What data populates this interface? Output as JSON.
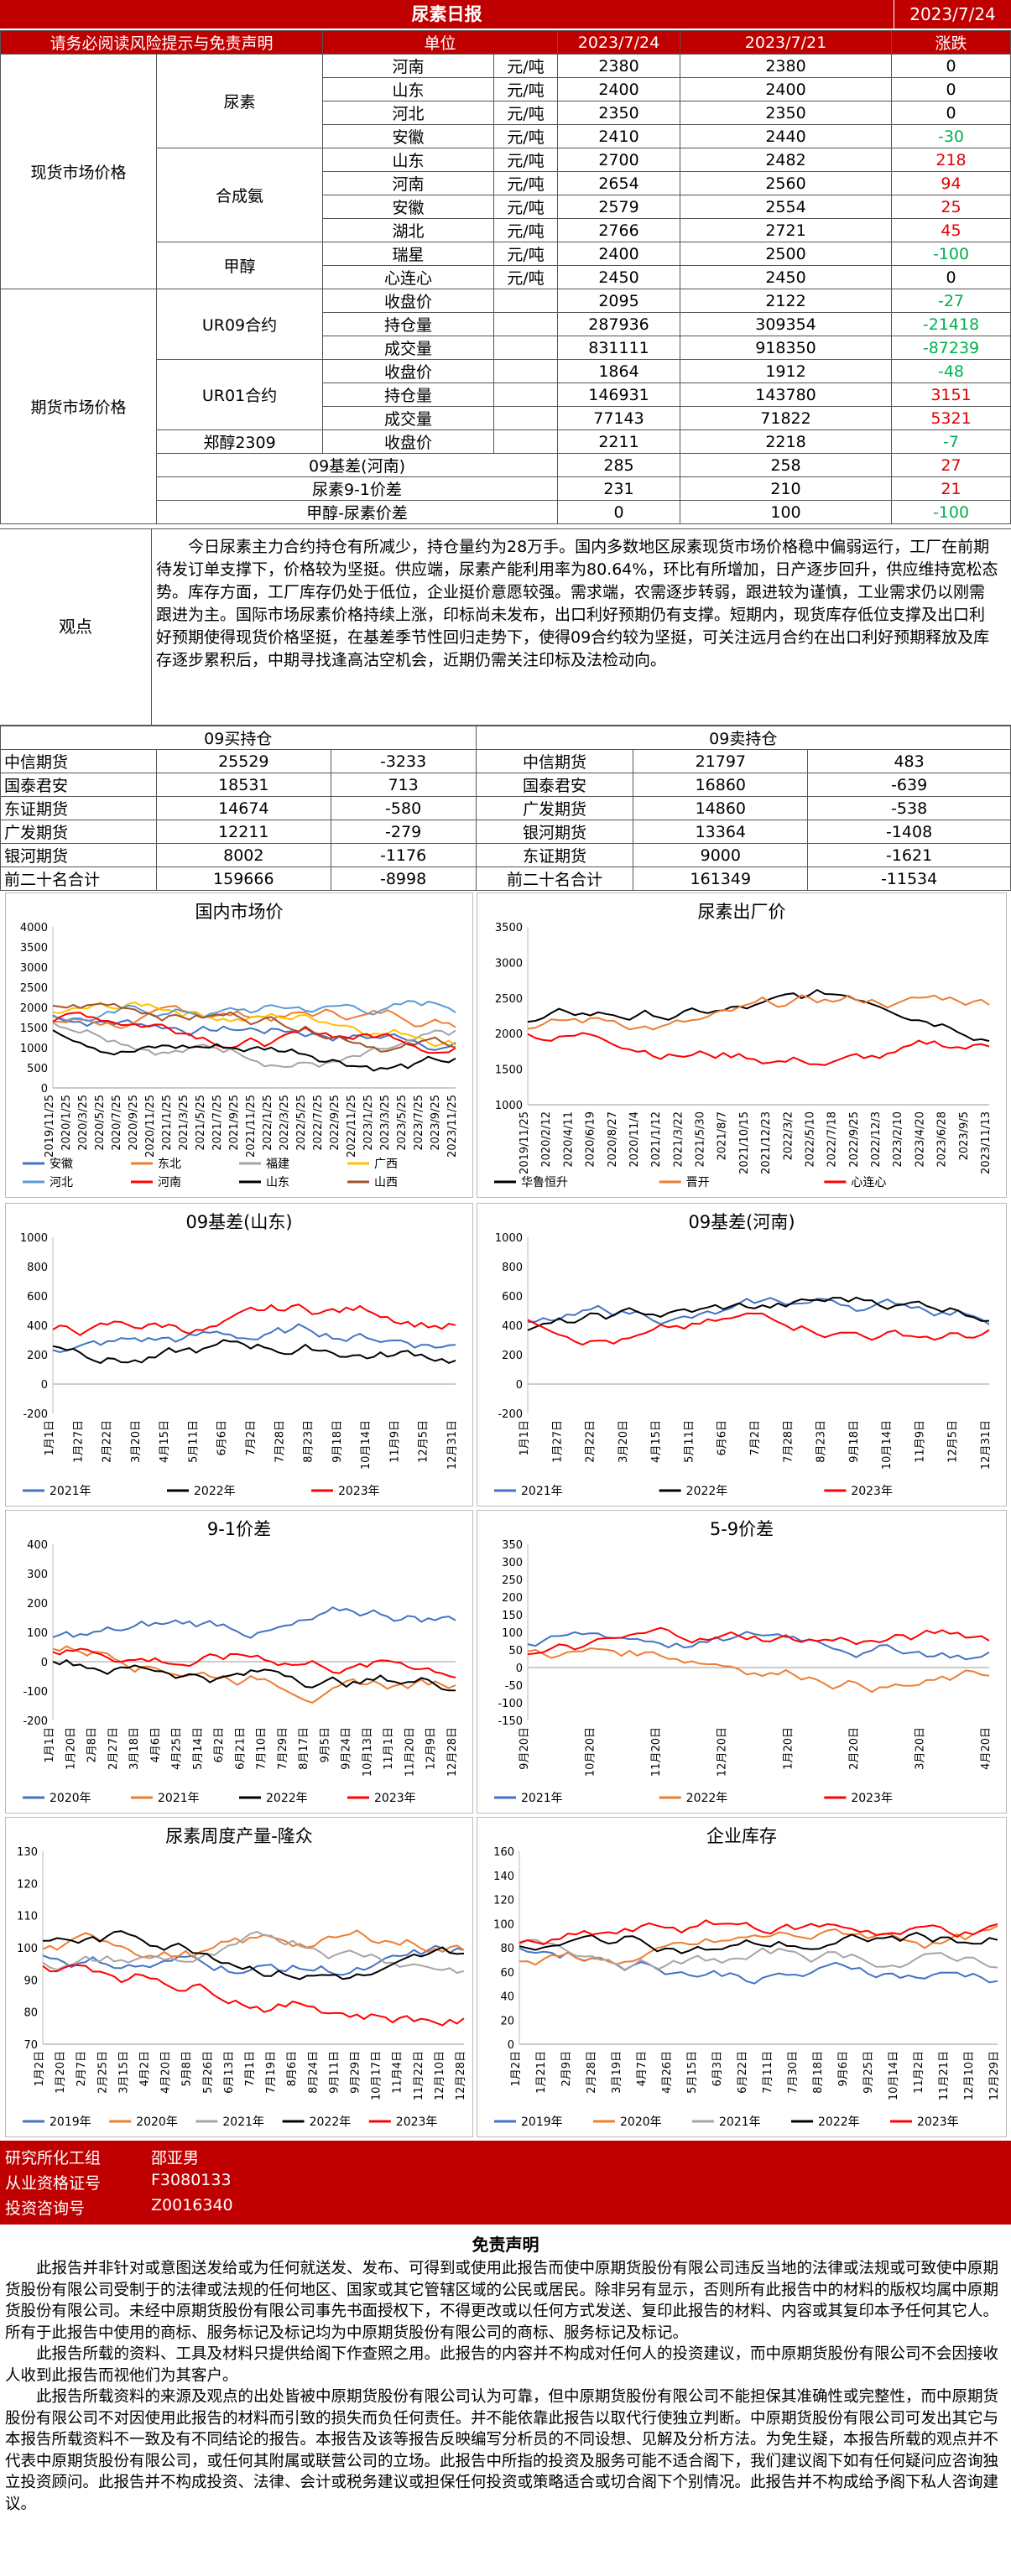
{
  "header": {
    "title": "尿素日报",
    "date": "2023/7/24"
  },
  "table_header": {
    "notice": "请务必阅读风险提示与免责声明",
    "unit": "单位",
    "d1": "2023/7/24",
    "d2": "2023/7/21",
    "change": "涨跌"
  },
  "groups": {
    "spot": "现货市场价格",
    "futures": "期货市场价格"
  },
  "subgroups": {
    "urea": "尿素",
    "ammonia": "合成氨",
    "methanol": "甲醇",
    "ur09": "UR09合约",
    "ur01": "UR01合约",
    "zc": "郑醇2309"
  },
  "rows": [
    {
      "name": "河南",
      "unit": "元/吨",
      "a": "2380",
      "b": "2380",
      "c": "0",
      "cls": ""
    },
    {
      "name": "山东",
      "unit": "元/吨",
      "a": "2400",
      "b": "2400",
      "c": "0",
      "cls": ""
    },
    {
      "name": "河北",
      "unit": "元/吨",
      "a": "2350",
      "b": "2350",
      "c": "0",
      "cls": ""
    },
    {
      "name": "安徽",
      "unit": "元/吨",
      "a": "2410",
      "b": "2440",
      "c": "-30",
      "cls": "neg"
    },
    {
      "name": "山东",
      "unit": "元/吨",
      "a": "2700",
      "b": "2482",
      "c": "218",
      "cls": "pos"
    },
    {
      "name": "河南",
      "unit": "元/吨",
      "a": "2654",
      "b": "2560",
      "c": "94",
      "cls": "pos"
    },
    {
      "name": "安徽",
      "unit": "元/吨",
      "a": "2579",
      "b": "2554",
      "c": "25",
      "cls": "pos"
    },
    {
      "name": "湖北",
      "unit": "元/吨",
      "a": "2766",
      "b": "2721",
      "c": "45",
      "cls": "pos"
    },
    {
      "name": "瑞星",
      "unit": "元/吨",
      "a": "2400",
      "b": "2500",
      "c": "-100",
      "cls": "neg"
    },
    {
      "name": "心连心",
      "unit": "元/吨",
      "a": "2450",
      "b": "2450",
      "c": "0",
      "cls": ""
    },
    {
      "name": "收盘价",
      "unit": "",
      "a": "2095",
      "b": "2122",
      "c": "-27",
      "cls": "neg"
    },
    {
      "name": "持仓量",
      "unit": "",
      "a": "287936",
      "b": "309354",
      "c": "-21418",
      "cls": "neg"
    },
    {
      "name": "成交量",
      "unit": "",
      "a": "831111",
      "b": "918350",
      "c": "-87239",
      "cls": "neg"
    },
    {
      "name": "收盘价",
      "unit": "",
      "a": "1864",
      "b": "1912",
      "c": "-48",
      "cls": "neg"
    },
    {
      "name": "持仓量",
      "unit": "",
      "a": "146931",
      "b": "143780",
      "c": "3151",
      "cls": "pos"
    },
    {
      "name": "成交量",
      "unit": "",
      "a": "77143",
      "b": "71822",
      "c": "5321",
      "cls": "pos"
    },
    {
      "name": "收盘价",
      "unit": "",
      "a": "2211",
      "b": "2218",
      "c": "-7",
      "cls": "neg"
    },
    {
      "name": "09基差(河南)",
      "unit": "",
      "a": "285",
      "b": "258",
      "c": "27",
      "cls": "pos"
    },
    {
      "name": "尿素9-1价差",
      "unit": "",
      "a": "231",
      "b": "210",
      "c": "21",
      "cls": "pos"
    },
    {
      "name": "甲醇-尿素价差",
      "unit": "",
      "a": "0",
      "b": "100",
      "c": "-100",
      "cls": "neg"
    }
  ],
  "observation": {
    "label": "观点",
    "text": "今日尿素主力合约持仓有所减少，持仓量约为28万手。国内多数地区尿素现货市场价格稳中偏弱运行，工厂在前期待发订单支撑下，价格较为坚挺。供应端，尿素产能利用率为80.64%，环比有所增加，日产逐步回升，供应维持宽松态势。库存方面，工厂库存仍处于低位，企业挺价意愿较强。需求端，农需逐步转弱，跟进较为谨慎，工业需求仍以刚需跟进为主。国际市场尿素价格持续上涨，印标尚未发布，出口利好预期仍有支撑。短期内，现货库存低位支撑及出口利好预期使得现货价格坚挺，在基差季节性回归走势下，使得09合约较为坚挺，可关注远月合约在出口利好预期释放及库存逐步累积后，中期寻找逢高沽空机会，近期仍需关注印标及法检动向。"
  },
  "holdings": {
    "buy_title": "09买持仓",
    "sell_title": "09卖持仓",
    "buy": [
      {
        "name": "中信期货",
        "v": "25529",
        "c": "-3233"
      },
      {
        "name": "国泰君安",
        "v": "18531",
        "c": "713"
      },
      {
        "name": "东证期货",
        "v": "14674",
        "c": "-580"
      },
      {
        "name": "广发期货",
        "v": "12211",
        "c": "-279"
      },
      {
        "name": "银河期货",
        "v": "8002",
        "c": "-1176"
      },
      {
        "name": "前二十名合计",
        "v": "159666",
        "c": "-8998"
      }
    ],
    "sell": [
      {
        "name": "中信期货",
        "v": "21797",
        "c": "483"
      },
      {
        "name": "国泰君安",
        "v": "16860",
        "c": "-639"
      },
      {
        "name": "广发期货",
        "v": "14860",
        "c": "-538"
      },
      {
        "name": "银河期货",
        "v": "13364",
        "c": "-1408"
      },
      {
        "name": "东证期货",
        "v": "9000",
        "c": "-1621"
      },
      {
        "name": "前二十名合计",
        "v": "161349",
        "c": "-11534"
      }
    ]
  },
  "charts": {
    "c1": {
      "title": "国内市场价"
    },
    "c2": {
      "title": "尿素出厂价"
    },
    "c3": {
      "title": "09基差(山东)"
    },
    "c4": {
      "title": "09基差(河南)"
    },
    "c5": {
      "title": "9-1价差"
    },
    "c6": {
      "title": "5-9价差"
    },
    "c7": {
      "title": "尿素周度产量-隆众"
    },
    "c8": {
      "title": "企业库存"
    }
  },
  "chart_data": [
    {
      "type": "line",
      "title": "国内市场价",
      "ylim": [
        0,
        4000
      ],
      "yticks": [
        "0",
        "500",
        "1000",
        "1500",
        "2000",
        "2500",
        "3000",
        "3500",
        "4000"
      ],
      "xticks": [
        "2019/11/25",
        "2020/1/25",
        "2020/3/25",
        "2020/5/25",
        "2020/7/25",
        "2020/9/25",
        "2020/11/25",
        "2021/1/25",
        "2021/3/25",
        "2021/5/25",
        "2021/7/25",
        "2021/9/25",
        "2021/11/25",
        "2022/1/25",
        "2022/3/25",
        "2022/5/25",
        "2022/7/25",
        "2022/9/25",
        "2022/11/25",
        "2023/1/25",
        "2023/3/25",
        "2023/5/25",
        "2023/7/25",
        "2023/9/25",
        "2023/11/25"
      ],
      "series": [
        {
          "name": "安徽",
          "color": "#4472c4"
        },
        {
          "name": "东北",
          "color": "#ed7d31"
        },
        {
          "name": "福建",
          "color": "#a5a5a5"
        },
        {
          "name": "广西",
          "color": "#ffc000"
        },
        {
          "name": "河北",
          "color": "#5b9bd5"
        },
        {
          "name": "河南",
          "color": "#ff0000"
        },
        {
          "name": "山东",
          "color": "#000000"
        },
        {
          "name": "山西",
          "color": "#a0522d"
        }
      ]
    },
    {
      "type": "line",
      "title": "尿素出厂价",
      "ylim": [
        1000,
        3500
      ],
      "yticks": [
        "1000",
        "1500",
        "2000",
        "2500",
        "3000",
        "3500"
      ],
      "xticks": [
        "2019/11/25",
        "2020/2/12",
        "2020/4/11",
        "2020/6/19",
        "2020/8/27",
        "2020/11/4",
        "2021/1/12",
        "2021/3/22",
        "2021/5/30",
        "2021/8/7",
        "2021/10/15",
        "2021/12/23",
        "2022/3/2",
        "2022/5/10",
        "2022/7/18",
        "2022/9/25",
        "2022/12/3",
        "2023/2/10",
        "2023/4/20",
        "2023/6/28",
        "2023/9/5",
        "2023/11/13"
      ],
      "series": [
        {
          "name": "华鲁恒升",
          "color": "#000000"
        },
        {
          "name": "晋开",
          "color": "#ed7d31"
        },
        {
          "name": "心连心",
          "color": "#ff0000"
        }
      ]
    },
    {
      "type": "line",
      "title": "09基差(山东)",
      "ylim": [
        -200,
        1000
      ],
      "yticks": [
        "-200",
        "0",
        "200",
        "400",
        "600",
        "800",
        "1000"
      ],
      "xticks": [
        "1月1日",
        "1月27日",
        "2月22日",
        "3月20日",
        "4月15日",
        "5月11日",
        "6月6日",
        "7月2日",
        "7月28日",
        "8月23日",
        "9月18日",
        "10月14日",
        "11月9日",
        "12月5日",
        "12月31日"
      ],
      "series": [
        {
          "name": "2021年",
          "color": "#4472c4"
        },
        {
          "name": "2022年",
          "color": "#000000"
        },
        {
          "name": "2023年",
          "color": "#ff0000"
        }
      ]
    },
    {
      "type": "line",
      "title": "09基差(河南)",
      "ylim": [
        -200,
        1000
      ],
      "yticks": [
        "-200",
        "0",
        "200",
        "400",
        "600",
        "800",
        "1000"
      ],
      "xticks": [
        "1月1日",
        "1月27日",
        "2月22日",
        "3月20日",
        "4月15日",
        "5月11日",
        "6月6日",
        "7月2日",
        "7月28日",
        "8月23日",
        "9月18日",
        "10月14日",
        "11月9日",
        "12月5日",
        "12月31日"
      ],
      "series": [
        {
          "name": "2021年",
          "color": "#4472c4"
        },
        {
          "name": "2022年",
          "color": "#000000"
        },
        {
          "name": "2023年",
          "color": "#ff0000"
        }
      ]
    },
    {
      "type": "line",
      "title": "9-1价差",
      "ylim": [
        -200,
        400
      ],
      "yticks": [
        "-200",
        "-100",
        "0",
        "100",
        "200",
        "300",
        "400"
      ],
      "xticks": [
        "1月1日",
        "1月20日",
        "2月8日",
        "2月27日",
        "3月18日",
        "4月6日",
        "4月25日",
        "5月14日",
        "6月2日",
        "6月21日",
        "7月10日",
        "7月29日",
        "8月17日",
        "9月5日",
        "9月24日",
        "10月13日",
        "11月1日",
        "11月20日",
        "12月9日",
        "12月28日"
      ],
      "series": [
        {
          "name": "2020年",
          "color": "#4472c4"
        },
        {
          "name": "2021年",
          "color": "#ed7d31"
        },
        {
          "name": "2022年",
          "color": "#000000"
        },
        {
          "name": "2023年",
          "color": "#ff0000"
        }
      ]
    },
    {
      "type": "line",
      "title": "5-9价差",
      "ylim": [
        -150,
        350
      ],
      "yticks": [
        "-150",
        "-100",
        "-50",
        "0",
        "50",
        "100",
        "150",
        "200",
        "250",
        "300",
        "350"
      ],
      "xticks": [
        "9月20日",
        "10月20日",
        "11月20日",
        "12月20日",
        "1月20日",
        "2月20日",
        "3月20日",
        "4月20日"
      ],
      "series": [
        {
          "name": "2021年",
          "color": "#4472c4"
        },
        {
          "name": "2022年",
          "color": "#ed7d31"
        },
        {
          "name": "2023年",
          "color": "#ff0000"
        }
      ]
    },
    {
      "type": "line",
      "title": "尿素周度产量-隆众",
      "ylim": [
        70,
        130
      ],
      "yticks": [
        "70",
        "80",
        "90",
        "100",
        "110",
        "120",
        "130"
      ],
      "xticks": [
        "1月2日",
        "1月20日",
        "2月7日",
        "2月25日",
        "3月15日",
        "4月2日",
        "4月20日",
        "5月8日",
        "5月26日",
        "6月13日",
        "7月1日",
        "7月19日",
        "8月6日",
        "8月24日",
        "9月11日",
        "9月29日",
        "10月17日",
        "11月4日",
        "11月22日",
        "12月10日",
        "12月28日"
      ],
      "series": [
        {
          "name": "2019年",
          "color": "#4472c4"
        },
        {
          "name": "2020年",
          "color": "#ed7d31"
        },
        {
          "name": "2021年",
          "color": "#a5a5a5"
        },
        {
          "name": "2022年",
          "color": "#000000"
        },
        {
          "name": "2023年",
          "color": "#ff0000"
        }
      ]
    },
    {
      "type": "line",
      "title": "企业库存",
      "ylim": [
        0,
        160
      ],
      "yticks": [
        "0",
        "20",
        "40",
        "60",
        "80",
        "100",
        "120",
        "140",
        "160"
      ],
      "xticks": [
        "1月2日",
        "1月21日",
        "2月9日",
        "2月28日",
        "3月19日",
        "4月7日",
        "4月26日",
        "5月15日",
        "6月3日",
        "6月22日",
        "7月11日",
        "7月30日",
        "8月18日",
        "9月6日",
        "9月25日",
        "10月14日",
        "11月2日",
        "11月21日",
        "12月10日",
        "12月29日"
      ],
      "series": [
        {
          "name": "2019年",
          "color": "#4472c4"
        },
        {
          "name": "2020年",
          "color": "#ed7d31"
        },
        {
          "name": "2021年",
          "color": "#a5a5a5"
        },
        {
          "name": "2022年",
          "color": "#000000"
        },
        {
          "name": "2023年",
          "color": "#ff0000"
        }
      ]
    }
  ],
  "footer": {
    "org": "研究所化工组",
    "name": "邵亚男",
    "lic_label": "从业资格证号",
    "lic": "F3080133",
    "inv_label": "投资咨询号",
    "inv": "Z0016340"
  },
  "disclaimer": {
    "title": "免责声明",
    "paragraphs": [
      "此报告并非针对或意图送发给或为任何就送发、发布、可得到或使用此报告而使中原期货股份有限公司违反当地的法律或法规或可致使中原期货股份有限公司受制于的法律或法规的任何地区、国家或其它管辖区域的公民或居民。除非另有显示，否则所有此报告中的材料的版权均属中原期货股份有限公司。未经中原期货股份有限公司事先书面授权下，不得更改或以任何方式发送、复印此报告的材料、内容或其复印本予任何其它人。所有于此报告中使用的商标、服务标记及标记均为中原期货股份有限公司的商标、服务标记及标记。",
      "此报告所载的资料、工具及材料只提供给阁下作查照之用。此报告的内容并不构成对任何人的投资建议，而中原期货股份有限公司不会因接收人收到此报告而视他们为其客户。",
      "此报告所载资料的来源及观点的出处皆被中原期货股份有限公司认为可靠，但中原期货股份有限公司不能担保其准确性或完整性，而中原期货股份有限公司不对因使用此报告的材料而引致的损失而负任何责任。并不能依靠此报告以取代行使独立判断。中原期货股份有限公司可发出其它与本报告所载资料不一致及有不同结论的报告。本报告及该等报告反映编写分析员的不同设想、见解及分析方法。为免生疑，本报告所载的观点并不代表中原期货股份有限公司，或任何其附属或联营公司的立场。此报告中所指的投资及服务可能不适合阁下，我们建议阁下如有任何疑问应咨询独立投资顾问。此报告并不构成投资、法律、会计或税务建议或担保任何投资或策略适合或切合阁下个别情况。此报告并不构成给予阁下私人咨询建议。"
    ]
  }
}
